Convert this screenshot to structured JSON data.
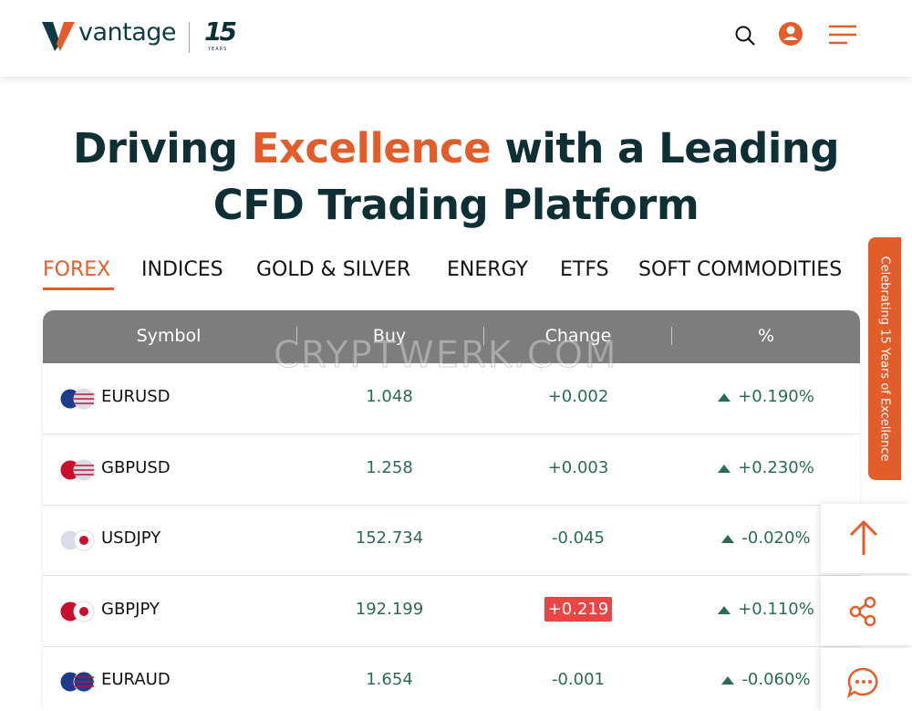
{
  "header": {
    "logo_text": "vantage",
    "anniversary_number": "15",
    "anniversary_word": "YEARS"
  },
  "headline": {
    "part1": "Driving ",
    "highlight": "Excellence",
    "part2": " with a Leading",
    "line2": "CFD Trading Platform"
  },
  "tabs": [
    "FOREX",
    "INDICES",
    "GOLD & SILVER",
    "ENERGY",
    "ETFS",
    "SOFT COMMODITIES"
  ],
  "table": {
    "columns": [
      "Symbol",
      "Buy",
      "Change",
      "%"
    ],
    "rows": [
      [
        "EURUSD",
        "1.048",
        "+0.002",
        "+0.190%"
      ],
      [
        "GBPUSD",
        "1.258",
        "+0.003",
        "+0.230%"
      ],
      [
        "USDJPY",
        "152.734",
        "-0.045",
        "-0.020%"
      ],
      [
        "GBPJPY",
        "192.199",
        "+0.219",
        "+0.110%"
      ],
      [
        "EURAUD",
        "1.654",
        "-0.001",
        "-0.060%"
      ]
    ]
  },
  "side_tab": "Celebrating 15 Years of Excellence",
  "watermark": "CRYPTWERK.COM"
}
